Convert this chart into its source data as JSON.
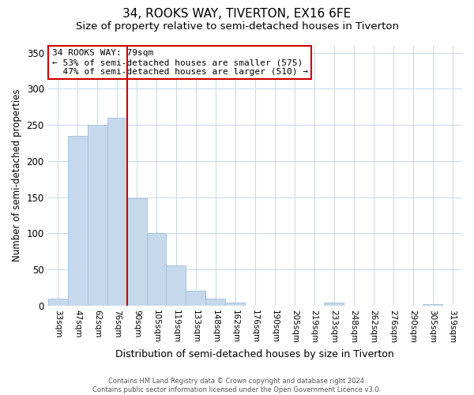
{
  "title": "34, ROOKS WAY, TIVERTON, EX16 6FE",
  "subtitle": "Size of property relative to semi-detached houses in Tiverton",
  "xlabel": "Distribution of semi-detached houses by size in Tiverton",
  "ylabel": "Number of semi-detached properties",
  "bar_labels": [
    "33sqm",
    "47sqm",
    "62sqm",
    "76sqm",
    "90sqm",
    "105sqm",
    "119sqm",
    "133sqm",
    "148sqm",
    "162sqm",
    "176sqm",
    "190sqm",
    "205sqm",
    "219sqm",
    "233sqm",
    "248sqm",
    "262sqm",
    "276sqm",
    "290sqm",
    "305sqm",
    "319sqm"
  ],
  "bar_values": [
    10,
    235,
    250,
    260,
    148,
    100,
    55,
    20,
    10,
    4,
    0,
    0,
    0,
    0,
    4,
    0,
    0,
    0,
    0,
    2,
    0
  ],
  "bar_color": "#c5d8ec",
  "bar_edge_color": "#a8c4dc",
  "vline_color": "#cc0000",
  "annotation_line1": "34 ROOKS WAY: 79sqm",
  "annotation_line2": "← 53% of semi-detached houses are smaller (575)",
  "annotation_line3": "  47% of semi-detached houses are larger (510) →",
  "annotation_box_color": "#ffffff",
  "annotation_box_edge": "#cc0000",
  "ylim": [
    0,
    360
  ],
  "yticks": [
    0,
    50,
    100,
    150,
    200,
    250,
    300,
    350
  ],
  "footer_line1": "Contains HM Land Registry data © Crown copyright and database right 2024.",
  "footer_line2": "Contains public sector information licensed under the Open Government Licence v3.0.",
  "title_fontsize": 11,
  "subtitle_fontsize": 9.5,
  "background_color": "#ffffff",
  "grid_color": "#c8d8e8"
}
